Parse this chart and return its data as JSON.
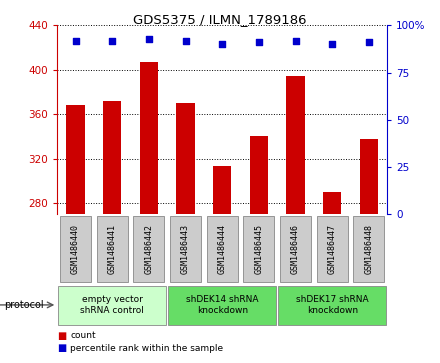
{
  "title": "GDS5375 / ILMN_1789186",
  "samples": [
    "GSM1486440",
    "GSM1486441",
    "GSM1486442",
    "GSM1486443",
    "GSM1486444",
    "GSM1486445",
    "GSM1486446",
    "GSM1486447",
    "GSM1486448"
  ],
  "counts": [
    368,
    372,
    407,
    370,
    313,
    340,
    394,
    290,
    338
  ],
  "percentile_ranks": [
    92,
    92,
    93,
    92,
    90,
    91,
    92,
    90,
    91
  ],
  "ylim_left": [
    270,
    440
  ],
  "ylim_right": [
    0,
    100
  ],
  "yticks_left": [
    280,
    320,
    360,
    400,
    440
  ],
  "yticks_right": [
    0,
    25,
    50,
    75,
    100
  ],
  "bar_color": "#cc0000",
  "dot_color": "#0000cc",
  "groups": [
    {
      "label": "empty vector\nshRNA control",
      "start": 0,
      "end": 3,
      "color": "#ccffcc"
    },
    {
      "label": "shDEK14 shRNA\nknockdown",
      "start": 3,
      "end": 6,
      "color": "#66dd66"
    },
    {
      "label": "shDEK17 shRNA\nknockdown",
      "start": 6,
      "end": 9,
      "color": "#66dd66"
    }
  ],
  "legend_count_label": "count",
  "legend_pct_label": "percentile rank within the sample",
  "sample_box_color": "#cccccc",
  "plot_bg": "#ffffff"
}
